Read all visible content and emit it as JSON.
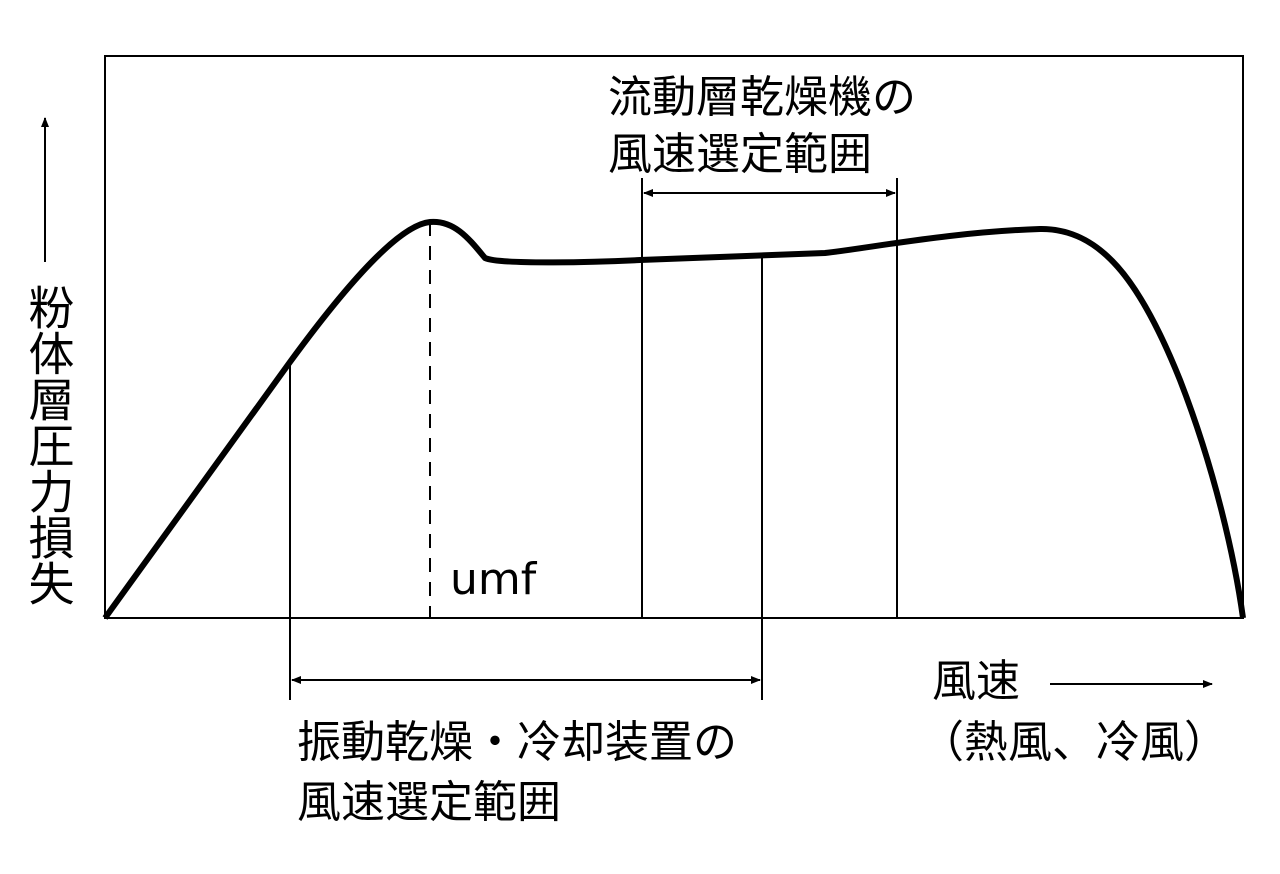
{
  "y_axis_label": "粉体層圧力損失",
  "x_axis_label": "風速",
  "x_axis_sublabel": "（熱風、冷風）",
  "umf_label": "umf",
  "fluid_bed_range": {
    "line1": "流動層乾燥機の",
    "line2": "風速選定範囲"
  },
  "vibration_range": {
    "line1": "振動乾燥・冷却装置の",
    "line2": "風速選定範囲"
  }
}
